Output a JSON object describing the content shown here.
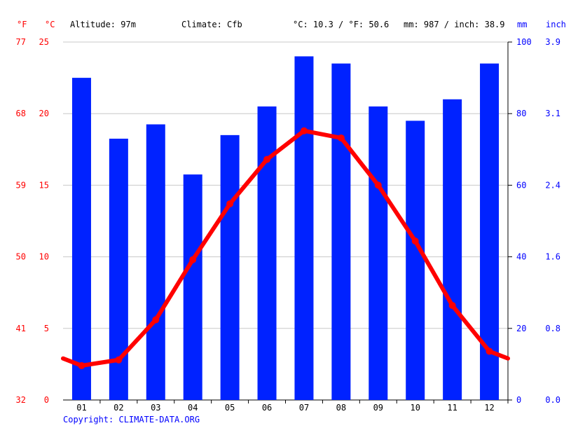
{
  "header": {
    "unit_f": "°F",
    "unit_c": "°C",
    "altitude": "Altitude: 97m",
    "climate": "Climate: Cfb",
    "temp_avg": "°C: 10.3 / °F: 50.6",
    "precip_total": "mm: 987 / inch: 38.9",
    "unit_mm": "mm",
    "unit_inch": "inch"
  },
  "copyright": "Copyright: CLIMATE-DATA.ORG",
  "colors": {
    "temperature": "#ff0000",
    "precipitation": "#0022ff",
    "grid": "#c8c8c8",
    "left_axis": "#ff0000",
    "right_axis": "#0000ff"
  },
  "chart_data": {
    "type": "bar",
    "categories": [
      "01",
      "02",
      "03",
      "04",
      "05",
      "06",
      "07",
      "08",
      "09",
      "10",
      "11",
      "12"
    ],
    "series": [
      {
        "type": "bar",
        "axis": "right",
        "values": [
          90,
          73,
          77,
          63,
          74,
          82,
          96,
          94,
          82,
          78,
          84,
          94
        ]
      },
      {
        "type": "line",
        "axis": "left",
        "values": [
          2.4,
          2.8,
          5.6,
          9.8,
          13.7,
          16.8,
          18.8,
          18.3,
          15.0,
          11.1,
          6.6,
          3.4
        ],
        "edges": [
          2.9,
          2.9
        ]
      }
    ],
    "left_axis_c": {
      "ticks": [
        0,
        5,
        10,
        15,
        20,
        25
      ],
      "ylim": [
        0,
        25
      ]
    },
    "left_axis_f": {
      "ticks": [
        32,
        41,
        50,
        59,
        68,
        77
      ]
    },
    "right_axis_mm": {
      "ticks": [
        0,
        20,
        40,
        60,
        80,
        100
      ],
      "ylim": [
        0,
        100
      ]
    },
    "right_axis_inch": {
      "ticks": [
        "0.0",
        "0.8",
        "1.6",
        "2.4",
        "3.1",
        "3.9"
      ]
    },
    "grid": true
  }
}
